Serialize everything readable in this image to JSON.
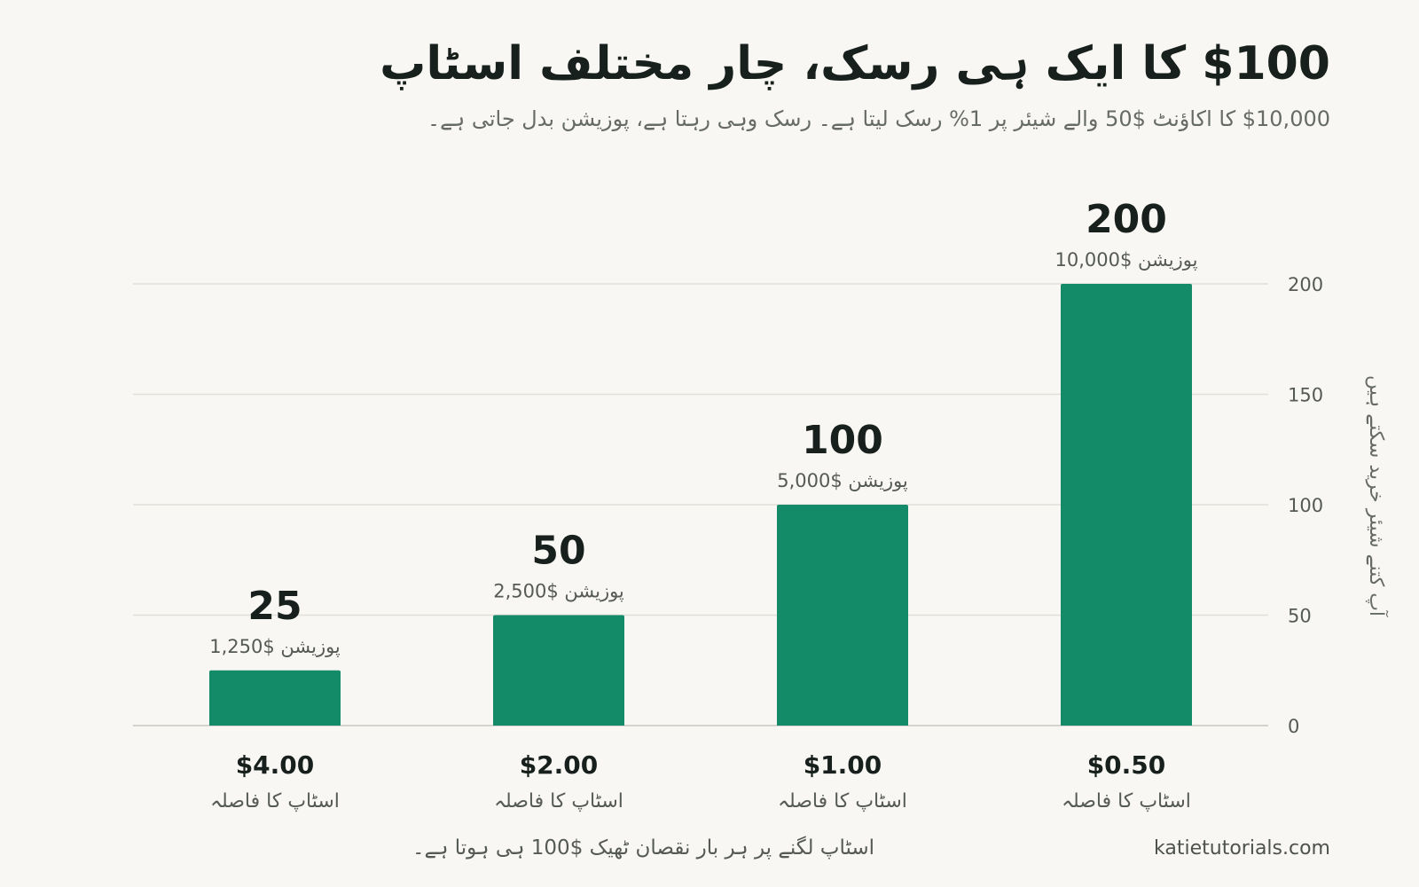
{
  "header": {
    "title": "$100 کا ایک ہی رسک، چار مختلف اسٹاپ",
    "subtitle": "$10,000 کا اکاؤنٹ $50 والے شیئر پر 1% رسک لیتا ہے۔ رسک وہی رہتا ہے، پوزیشن بدل جاتی ہے۔"
  },
  "footer": {
    "note": "اسٹاپ لگنے پر ہر بار نقصان ٹھیک $100 ہی ہوتا ہے۔",
    "credit": "katietutorials.com"
  },
  "chart_data": {
    "type": "bar",
    "categories": [
      "$4.00",
      "$2.00",
      "$1.00",
      "$0.50"
    ],
    "category_sublabel": "اسٹاپ کا فاصلہ",
    "values": [
      25,
      50,
      100,
      200
    ],
    "position_labels": [
      "پوزیشن $1,250",
      "پوزیشن $2,500",
      "پوزیشن $5,000",
      "پوزیشن $10,000"
    ],
    "ylabel": "آپ کتنے شیئر خرید سکتے ہیں",
    "ylim": [
      0,
      200
    ],
    "yticks": [
      0,
      50,
      100,
      150,
      200
    ],
    "y_axis_side": "right",
    "grid": true,
    "bar_color": "#138a68",
    "grid_color": "#e1dfda"
  }
}
